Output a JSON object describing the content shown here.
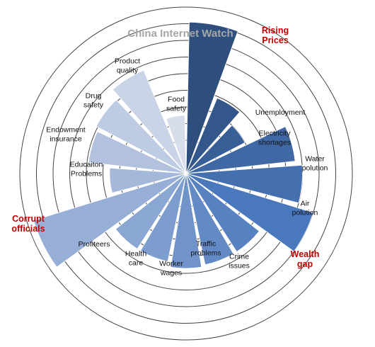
{
  "chart_data": {
    "type": "polar-area",
    "title": "China Internet Watch",
    "categories": [
      "Rising Prices",
      "Unemployment",
      "Electricity shortages",
      "Water polution",
      "Air polution",
      "Wealth gap",
      "Crime issues",
      "Traffic problems",
      "Worker wages",
      "Health care",
      "Profiteers",
      "Corrupt officials",
      "Educaiton Problems",
      "Endowment insurance",
      "Drug safety",
      "Product quality",
      "Food safety"
    ],
    "values": [
      9.1,
      4.9,
      4.0,
      6.6,
      7.0,
      8.0,
      5.6,
      5.6,
      5.7,
      5.4,
      5.4,
      9.6,
      4.6,
      5.9,
      6.1,
      6.7,
      3.5
    ],
    "highlighted": [
      "Rising Prices",
      "Wealth gap",
      "Corrupt officials"
    ],
    "rlim": [
      0,
      10
    ],
    "ring_count": 10,
    "grid": true,
    "colors": {
      "dark": "#2e4f7e",
      "mid": "#4a78bd",
      "light": "#d7ddeb",
      "highlight_text": "#c00000",
      "title": "#a6a6a6",
      "ring": "#444444"
    }
  }
}
